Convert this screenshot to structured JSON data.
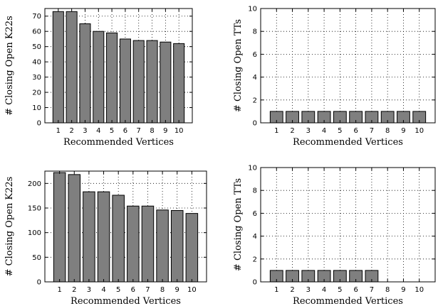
{
  "chart_data": [
    {
      "type": "bar",
      "categories": [
        "1",
        "2",
        "3",
        "4",
        "5",
        "6",
        "7",
        "8",
        "9",
        "10"
      ],
      "values": [
        73,
        73,
        65,
        60,
        59,
        55,
        54,
        54,
        53,
        52
      ],
      "xlabel": "Recommended Vertices",
      "ylabel": "# Closing Open K22s",
      "ylim": [
        0,
        75
      ],
      "yticks": [
        0,
        10,
        20,
        30,
        40,
        50,
        60,
        70
      ],
      "grid": true
    },
    {
      "type": "bar",
      "categories": [
        "1",
        "2",
        "3",
        "4",
        "5",
        "6",
        "7",
        "8",
        "9",
        "10"
      ],
      "values": [
        1,
        1,
        1,
        1,
        1,
        1,
        1,
        1,
        1,
        1
      ],
      "xlabel": "Recommended Vertices",
      "ylabel": "# Closing Open TTs",
      "ylim": [
        0,
        10
      ],
      "yticks": [
        0,
        2,
        4,
        6,
        8,
        10
      ],
      "grid": true
    },
    {
      "type": "bar",
      "categories": [
        "1",
        "2",
        "3",
        "4",
        "5",
        "6",
        "7",
        "8",
        "9",
        "10"
      ],
      "values": [
        222,
        218,
        183,
        183,
        176,
        154,
        154,
        146,
        145,
        139
      ],
      "xlabel": "Recommended Vertices",
      "ylabel": "# Closing Open K22s",
      "ylim": [
        0,
        225
      ],
      "yticks": [
        0,
        50,
        100,
        150,
        200
      ],
      "grid": true
    },
    {
      "type": "bar",
      "categories": [
        "1",
        "2",
        "3",
        "4",
        "5",
        "6",
        "7",
        "8",
        "9",
        "10"
      ],
      "values": [
        1,
        1,
        1,
        1,
        1,
        1,
        1,
        0,
        0,
        0
      ],
      "xlabel": "Recommended Vertices",
      "ylabel": "# Closing Open TTs",
      "ylim": [
        0,
        10
      ],
      "yticks": [
        0,
        2,
        4,
        6,
        8,
        10
      ],
      "grid": true
    }
  ]
}
